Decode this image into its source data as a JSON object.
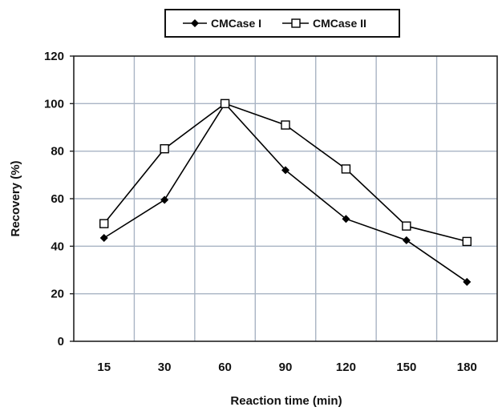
{
  "chart_data": {
    "type": "line",
    "title": "",
    "xlabel": "Reaction time (min)",
    "ylabel": "Recovery (%)",
    "categories": [
      "15",
      "30",
      "60",
      "90",
      "120",
      "150",
      "180"
    ],
    "ylim": [
      0,
      120
    ],
    "yticks": [
      "0",
      "20",
      "40",
      "60",
      "80",
      "100",
      "120"
    ],
    "grid": true,
    "legend_position": "top-center",
    "series": [
      {
        "name": "CMCase I",
        "marker": "diamond-filled",
        "color": "#000000",
        "values": [
          43.5,
          59.5,
          100,
          72,
          51.5,
          42.5,
          25
        ]
      },
      {
        "name": "CMCase II",
        "marker": "square-open",
        "color": "#000000",
        "values": [
          49.5,
          81,
          100,
          91,
          72.5,
          48.5,
          42
        ]
      }
    ]
  }
}
